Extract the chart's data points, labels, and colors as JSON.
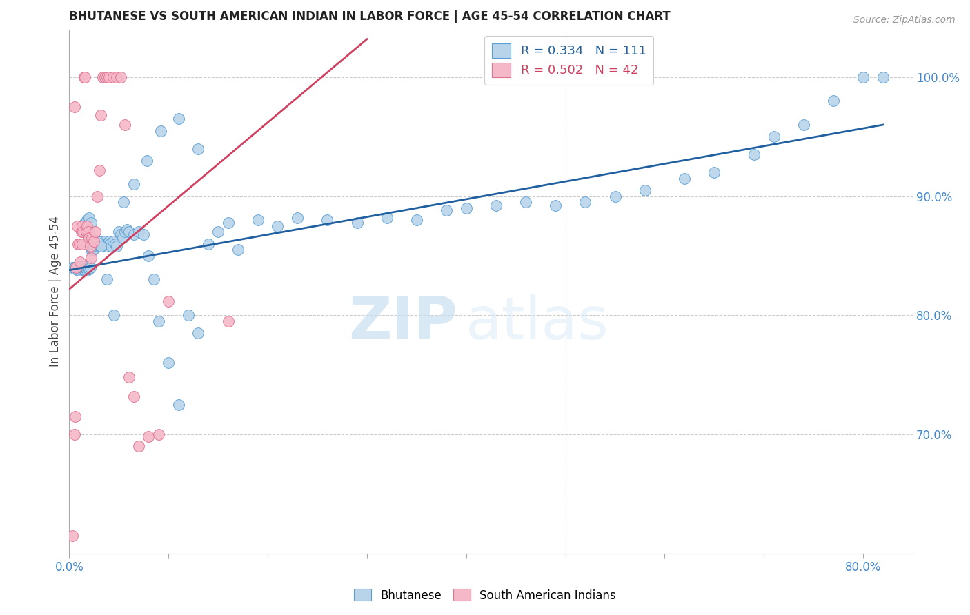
{
  "title": "BHUTANESE VS SOUTH AMERICAN INDIAN IN LABOR FORCE | AGE 45-54 CORRELATION CHART",
  "source": "Source: ZipAtlas.com",
  "ylabel": "In Labor Force | Age 45-54",
  "xlim": [
    0.0,
    0.85
  ],
  "ylim": [
    0.6,
    1.04
  ],
  "blue_R": 0.334,
  "blue_N": 111,
  "pink_R": 0.502,
  "pink_N": 42,
  "blue_color": "#b8d4ea",
  "pink_color": "#f5b8c8",
  "blue_edge_color": "#5a9fd4",
  "pink_edge_color": "#e07090",
  "blue_line_color": "#2060a0",
  "pink_line_color": "#d04060",
  "legend_label_blue": "Bhutanese",
  "legend_label_pink": "South American Indians",
  "watermark_zip": "ZIP",
  "watermark_atlas": "atlas",
  "background_color": "#ffffff",
  "blue_scatter_x": [
    0.003,
    0.005,
    0.006,
    0.007,
    0.008,
    0.009,
    0.01,
    0.01,
    0.011,
    0.012,
    0.012,
    0.013,
    0.013,
    0.014,
    0.015,
    0.015,
    0.016,
    0.016,
    0.017,
    0.017,
    0.018,
    0.018,
    0.019,
    0.02,
    0.02,
    0.021,
    0.022,
    0.022,
    0.023,
    0.024,
    0.025,
    0.025,
    0.026,
    0.027,
    0.028,
    0.028,
    0.029,
    0.03,
    0.031,
    0.032,
    0.033,
    0.034,
    0.035,
    0.036,
    0.037,
    0.038,
    0.04,
    0.041,
    0.042,
    0.044,
    0.046,
    0.048,
    0.05,
    0.052,
    0.054,
    0.056,
    0.058,
    0.06,
    0.065,
    0.07,
    0.075,
    0.08,
    0.085,
    0.09,
    0.1,
    0.11,
    0.12,
    0.13,
    0.14,
    0.15,
    0.16,
    0.17,
    0.19,
    0.21,
    0.23,
    0.26,
    0.29,
    0.32,
    0.35,
    0.38,
    0.4,
    0.43,
    0.46,
    0.49,
    0.52,
    0.55,
    0.58,
    0.62,
    0.65,
    0.69,
    0.71,
    0.74,
    0.77,
    0.8,
    0.82,
    0.014,
    0.016,
    0.018,
    0.02,
    0.022,
    0.025,
    0.028,
    0.032,
    0.038,
    0.045,
    0.055,
    0.065,
    0.078,
    0.092,
    0.11,
    0.13
  ],
  "blue_scatter_y": [
    0.84,
    0.84,
    0.839,
    0.84,
    0.841,
    0.838,
    0.838,
    0.84,
    0.839,
    0.84,
    0.841,
    0.839,
    0.84,
    0.84,
    0.839,
    0.841,
    0.838,
    0.84,
    0.839,
    0.84,
    0.838,
    0.84,
    0.84,
    0.841,
    0.839,
    0.84,
    0.855,
    0.857,
    0.858,
    0.855,
    0.856,
    0.858,
    0.86,
    0.862,
    0.86,
    0.858,
    0.859,
    0.858,
    0.86,
    0.862,
    0.858,
    0.86,
    0.862,
    0.86,
    0.858,
    0.86,
    0.862,
    0.86,
    0.858,
    0.862,
    0.86,
    0.858,
    0.87,
    0.868,
    0.865,
    0.87,
    0.872,
    0.87,
    0.868,
    0.87,
    0.868,
    0.85,
    0.83,
    0.795,
    0.76,
    0.725,
    0.8,
    0.785,
    0.86,
    0.87,
    0.878,
    0.855,
    0.88,
    0.875,
    0.882,
    0.88,
    0.878,
    0.882,
    0.88,
    0.888,
    0.89,
    0.892,
    0.895,
    0.892,
    0.895,
    0.9,
    0.905,
    0.915,
    0.92,
    0.935,
    0.95,
    0.96,
    0.98,
    1.0,
    1.0,
    0.875,
    0.878,
    0.88,
    0.882,
    0.878,
    0.86,
    0.862,
    0.858,
    0.83,
    0.8,
    0.895,
    0.91,
    0.93,
    0.955,
    0.965,
    0.94
  ],
  "pink_scatter_x": [
    0.003,
    0.005,
    0.006,
    0.007,
    0.008,
    0.009,
    0.01,
    0.011,
    0.012,
    0.013,
    0.013,
    0.014,
    0.015,
    0.016,
    0.017,
    0.018,
    0.019,
    0.02,
    0.021,
    0.022,
    0.023,
    0.025,
    0.026,
    0.028,
    0.03,
    0.032,
    0.034,
    0.036,
    0.038,
    0.04,
    0.044,
    0.048,
    0.052,
    0.056,
    0.06,
    0.065,
    0.07,
    0.08,
    0.09,
    0.1,
    0.16,
    0.005
  ],
  "pink_scatter_y": [
    0.615,
    0.7,
    0.715,
    0.84,
    0.875,
    0.86,
    0.86,
    0.845,
    0.87,
    0.875,
    0.86,
    0.87,
    1.0,
    1.0,
    0.87,
    0.875,
    0.87,
    0.865,
    0.858,
    0.848,
    0.865,
    0.862,
    0.87,
    0.9,
    0.922,
    0.968,
    1.0,
    1.0,
    1.0,
    1.0,
    1.0,
    1.0,
    1.0,
    0.96,
    0.748,
    0.732,
    0.69,
    0.698,
    0.7,
    0.812,
    0.795,
    0.975
  ],
  "blue_trend_x0": 0.0,
  "blue_trend_x1": 0.82,
  "blue_trend_y0": 0.838,
  "blue_trend_y1": 0.96,
  "pink_trend_x0": 0.0,
  "pink_trend_x1": 0.3,
  "pink_trend_y0": 0.822,
  "pink_trend_y1": 1.032
}
